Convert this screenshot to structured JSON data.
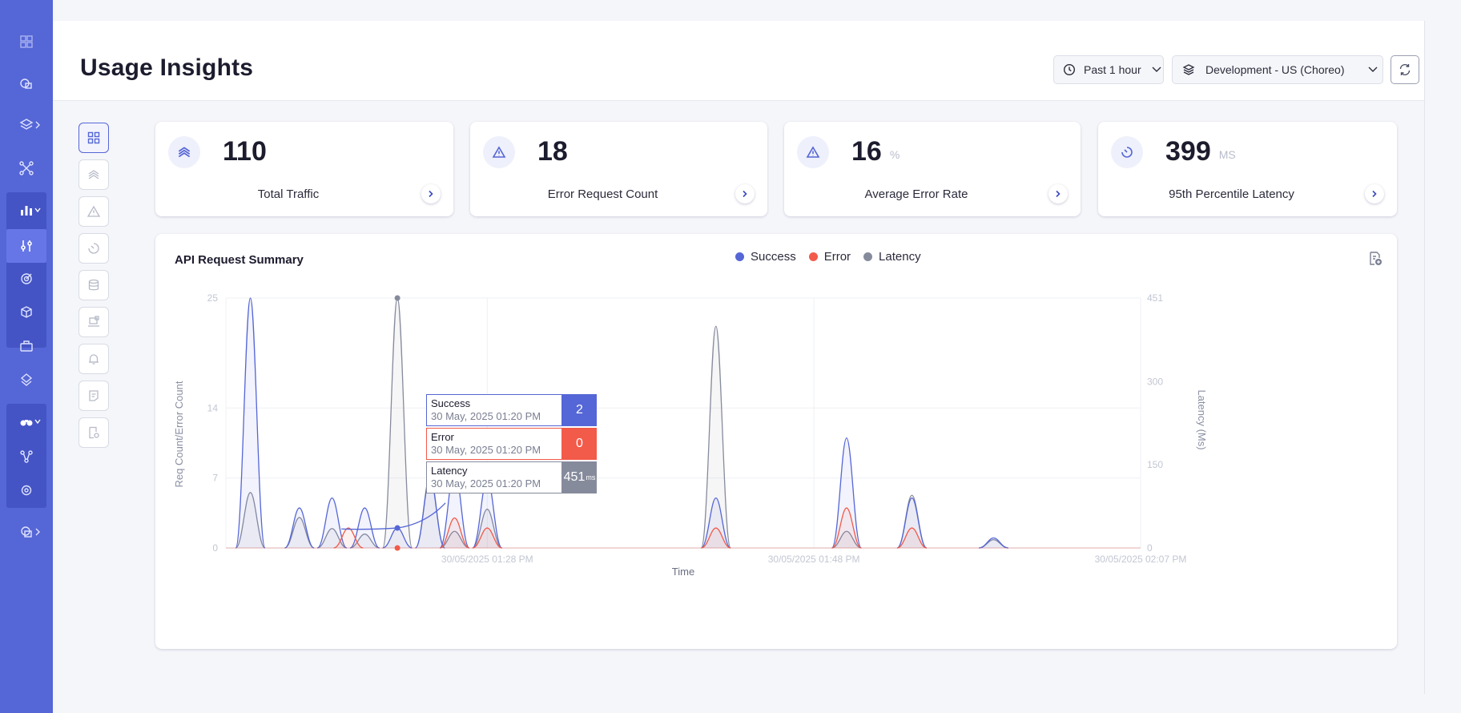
{
  "page": {
    "title": "Usage Insights"
  },
  "filters": {
    "time_range": "Past 1 hour",
    "environment": "Development - US (Choreo)"
  },
  "stats": [
    {
      "name": "total-traffic",
      "value": "110",
      "unit": "",
      "label": "Total Traffic",
      "icon": "stacked-chevrons-icon"
    },
    {
      "name": "error-request-count",
      "value": "18",
      "unit": "",
      "label": "Error Request Count",
      "icon": "warning-triangle-icon"
    },
    {
      "name": "average-error-rate",
      "value": "16",
      "unit": "%",
      "label": "Average Error Rate",
      "icon": "warning-triangle-icon"
    },
    {
      "name": "p95-latency",
      "value": "399",
      "unit": "MS",
      "label": "95th Percentile Latency",
      "icon": "timer-icon"
    }
  ],
  "chart_title": "API Request Summary",
  "tooltip": {
    "rows": [
      {
        "label": "Success",
        "date": "30 May, 2025 01:20 PM",
        "value": "2",
        "unit": "",
        "color": "#5566d6"
      },
      {
        "label": "Error",
        "date": "30 May, 2025 01:20 PM",
        "value": "0",
        "unit": "",
        "color": "#f25a4a"
      },
      {
        "label": "Latency",
        "date": "30 May, 2025 01:20 PM",
        "value": "451",
        "unit": "ms",
        "color": "#868b9c"
      }
    ]
  },
  "colors": {
    "accent": "#5566d6",
    "success": "#5566d6",
    "error": "#f25a4a",
    "latency": "#868b9c"
  },
  "chart_data": {
    "type": "area",
    "title": "API Request Summary",
    "xlabel": "Time",
    "ylabel": "Req Count/Error Count",
    "y2label": "Latency (Ms)",
    "ylim": [
      0,
      25
    ],
    "y2lim": [
      0,
      451
    ],
    "yticks": [
      0,
      7,
      14,
      25
    ],
    "y2ticks": [
      0,
      150,
      300,
      451
    ],
    "xlim": [
      0,
      48
    ],
    "xticks": [
      {
        "x": 16,
        "label": "30/05/2025 01:28 PM"
      },
      {
        "x": 36,
        "label": "30/05/2025 01:48 PM"
      },
      {
        "x": 56,
        "label": "30/05/2025 02:07 PM"
      }
    ],
    "legend_position": "top-center",
    "grid": true,
    "series": [
      {
        "name": "Success",
        "color": "#5566d6",
        "axis": "left",
        "points": [
          [
            1.5,
            25
          ],
          [
            4.5,
            4
          ],
          [
            6.5,
            5
          ],
          [
            8.5,
            4
          ],
          [
            10.5,
            2
          ],
          [
            12.5,
            7
          ],
          [
            14,
            8
          ],
          [
            16,
            7
          ],
          [
            30,
            5
          ],
          [
            38,
            11
          ],
          [
            42,
            5
          ],
          [
            47,
            1
          ]
        ]
      },
      {
        "name": "Error",
        "color": "#f25a4a",
        "axis": "left",
        "points": [
          [
            7.5,
            2
          ],
          [
            14,
            3
          ],
          [
            16,
            2
          ],
          [
            30,
            2
          ],
          [
            38,
            4
          ],
          [
            42,
            2
          ]
        ]
      },
      {
        "name": "Latency",
        "color": "#868b9c",
        "axis": "right",
        "points": [
          [
            1.5,
            100
          ],
          [
            4.5,
            55
          ],
          [
            6.5,
            35
          ],
          [
            8.5,
            25
          ],
          [
            10.5,
            451
          ],
          [
            12.5,
            130
          ],
          [
            14,
            30
          ],
          [
            16,
            70
          ],
          [
            30,
            400
          ],
          [
            38,
            30
          ],
          [
            42,
            95
          ],
          [
            47,
            15
          ]
        ]
      }
    ],
    "highlight": {
      "x": 10.5,
      "success": 2,
      "error": 0,
      "latency": 451
    }
  }
}
